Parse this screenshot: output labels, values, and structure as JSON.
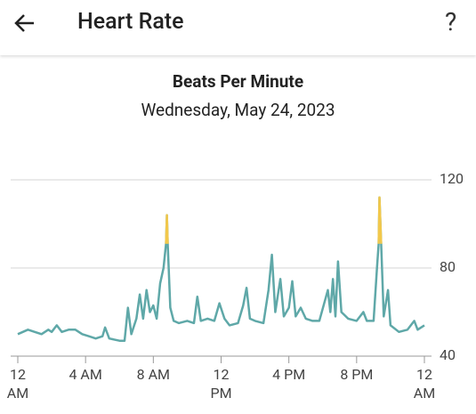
{
  "header": {
    "title": "Heart Rate",
    "help": "?"
  },
  "chart_data": {
    "type": "line",
    "title": "Beats Per Minute",
    "subtitle": "Wednesday, May 24, 2023",
    "x": [
      0,
      0.3,
      0.6,
      1.0,
      1.4,
      1.8,
      2.0,
      2.3,
      2.6,
      3.0,
      3.4,
      3.8,
      4.2,
      4.6,
      5.0,
      5.15,
      5.4,
      6.0,
      6.3,
      6.5,
      6.7,
      7.0,
      7.2,
      7.4,
      7.6,
      7.8,
      8.0,
      8.2,
      8.4,
      8.6,
      8.75,
      8.8,
      8.85,
      9.0,
      9.2,
      9.5,
      10.0,
      10.4,
      10.6,
      10.8,
      11.2,
      11.6,
      11.9,
      12.2,
      12.5,
      13.0,
      13.3,
      13.5,
      13.7,
      14.0,
      14.5,
      14.8,
      15.0,
      15.2,
      15.5,
      15.7,
      16.0,
      16.2,
      16.4,
      16.7,
      17.0,
      17.4,
      17.8,
      18.3,
      18.45,
      18.6,
      18.75,
      18.9,
      19.1,
      19.5,
      20.0,
      20.4,
      20.6,
      21.0,
      21.2,
      21.3,
      21.35,
      21.45,
      21.6,
      21.85,
      22.0,
      22.5,
      23.0,
      23.4,
      23.6,
      24.0
    ],
    "series": [
      {
        "color": "#5fa8a8",
        "values": [
          50,
          51,
          52,
          51,
          50,
          52,
          51,
          54,
          51,
          52,
          52,
          50,
          49,
          48,
          49,
          53,
          48,
          47,
          47,
          62,
          50,
          57,
          68,
          57,
          70,
          60,
          63,
          57,
          73,
          80,
          91,
          104,
          91,
          62,
          56,
          55,
          56,
          55,
          67,
          56,
          57,
          56,
          64,
          57,
          54,
          55,
          63,
          71,
          57,
          56,
          55,
          70,
          86,
          60,
          75,
          58,
          62,
          74,
          58,
          62,
          57,
          56,
          56,
          70,
          60,
          75,
          58,
          83,
          60,
          57,
          56,
          60,
          56,
          56,
          80,
          91,
          112,
          91,
          58,
          70,
          54,
          51,
          52,
          56,
          52,
          54
        ]
      },
      {
        "color": "#f2c84b",
        "values": [
          null,
          null,
          null,
          null,
          null,
          null,
          null,
          null,
          null,
          null,
          null,
          null,
          null,
          null,
          null,
          null,
          null,
          null,
          null,
          null,
          null,
          null,
          null,
          null,
          null,
          null,
          null,
          null,
          null,
          null,
          91,
          104,
          91,
          null,
          null,
          null,
          null,
          null,
          null,
          null,
          null,
          null,
          null,
          null,
          null,
          null,
          null,
          null,
          null,
          null,
          null,
          null,
          null,
          null,
          null,
          null,
          null,
          null,
          null,
          null,
          null,
          null,
          null,
          null,
          null,
          null,
          null,
          null,
          null,
          null,
          null,
          null,
          null,
          null,
          null,
          91,
          112,
          91,
          null,
          null,
          null,
          null,
          null,
          null,
          null,
          null
        ]
      }
    ],
    "xlim": [
      0,
      24
    ],
    "xticks": [
      {
        "value": 0,
        "label": "12 AM"
      },
      {
        "value": 4,
        "label": "4 AM"
      },
      {
        "value": 8,
        "label": "8 AM"
      },
      {
        "value": 12,
        "label": "12 PM"
      },
      {
        "value": 16,
        "label": "4 PM"
      },
      {
        "value": 20,
        "label": "8 PM"
      },
      {
        "value": 24,
        "label": "12 AM"
      }
    ],
    "ylim": [
      40,
      120
    ],
    "yticks": [
      40,
      80,
      120
    ],
    "grid": true
  }
}
